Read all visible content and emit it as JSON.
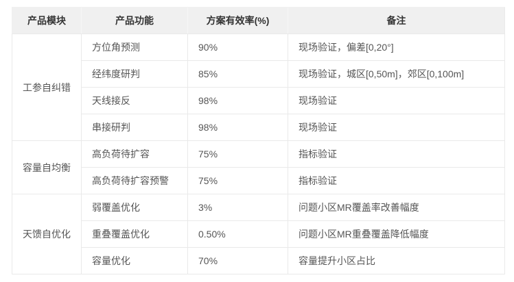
{
  "table": {
    "headers": [
      "产品模块",
      "产品功能",
      "方案有效率(%)",
      "备注"
    ],
    "modules": [
      {
        "name": "工参自纠错",
        "rows": [
          {
            "function": "方位角预测",
            "rate": "90%",
            "note": "现场验证，偏差[0,20°]"
          },
          {
            "function": "经纬度研判",
            "rate": "85%",
            "note": "现场验证，城区[0,50m]，郊区[0,100m]"
          },
          {
            "function": "天线接反",
            "rate": "98%",
            "note": "现场验证"
          },
          {
            "function": "串接研判",
            "rate": "98%",
            "note": "现场验证"
          }
        ]
      },
      {
        "name": "容量自均衡",
        "rows": [
          {
            "function": "高负荷待扩容",
            "rate": "75%",
            "note": "指标验证"
          },
          {
            "function": "高负荷待扩容预警",
            "rate": "75%",
            "note": "指标验证"
          }
        ]
      },
      {
        "name": "天馈自优化",
        "rows": [
          {
            "function": "弱覆盖优化",
            "rate": "3%",
            "note": "问题小区MR覆盖率改善幅度"
          },
          {
            "function": "重叠覆盖优化",
            "rate": "0.50%",
            "note": "问题小区MR重叠覆盖降低幅度"
          },
          {
            "function": "容量优化",
            "rate": "70%",
            "note": "容量提升小区占比"
          }
        ]
      }
    ],
    "colors": {
      "header_bg": "#f0f0f0",
      "border": "#e9e9e9",
      "header_text": "#333333",
      "body_text": "#555555"
    }
  }
}
